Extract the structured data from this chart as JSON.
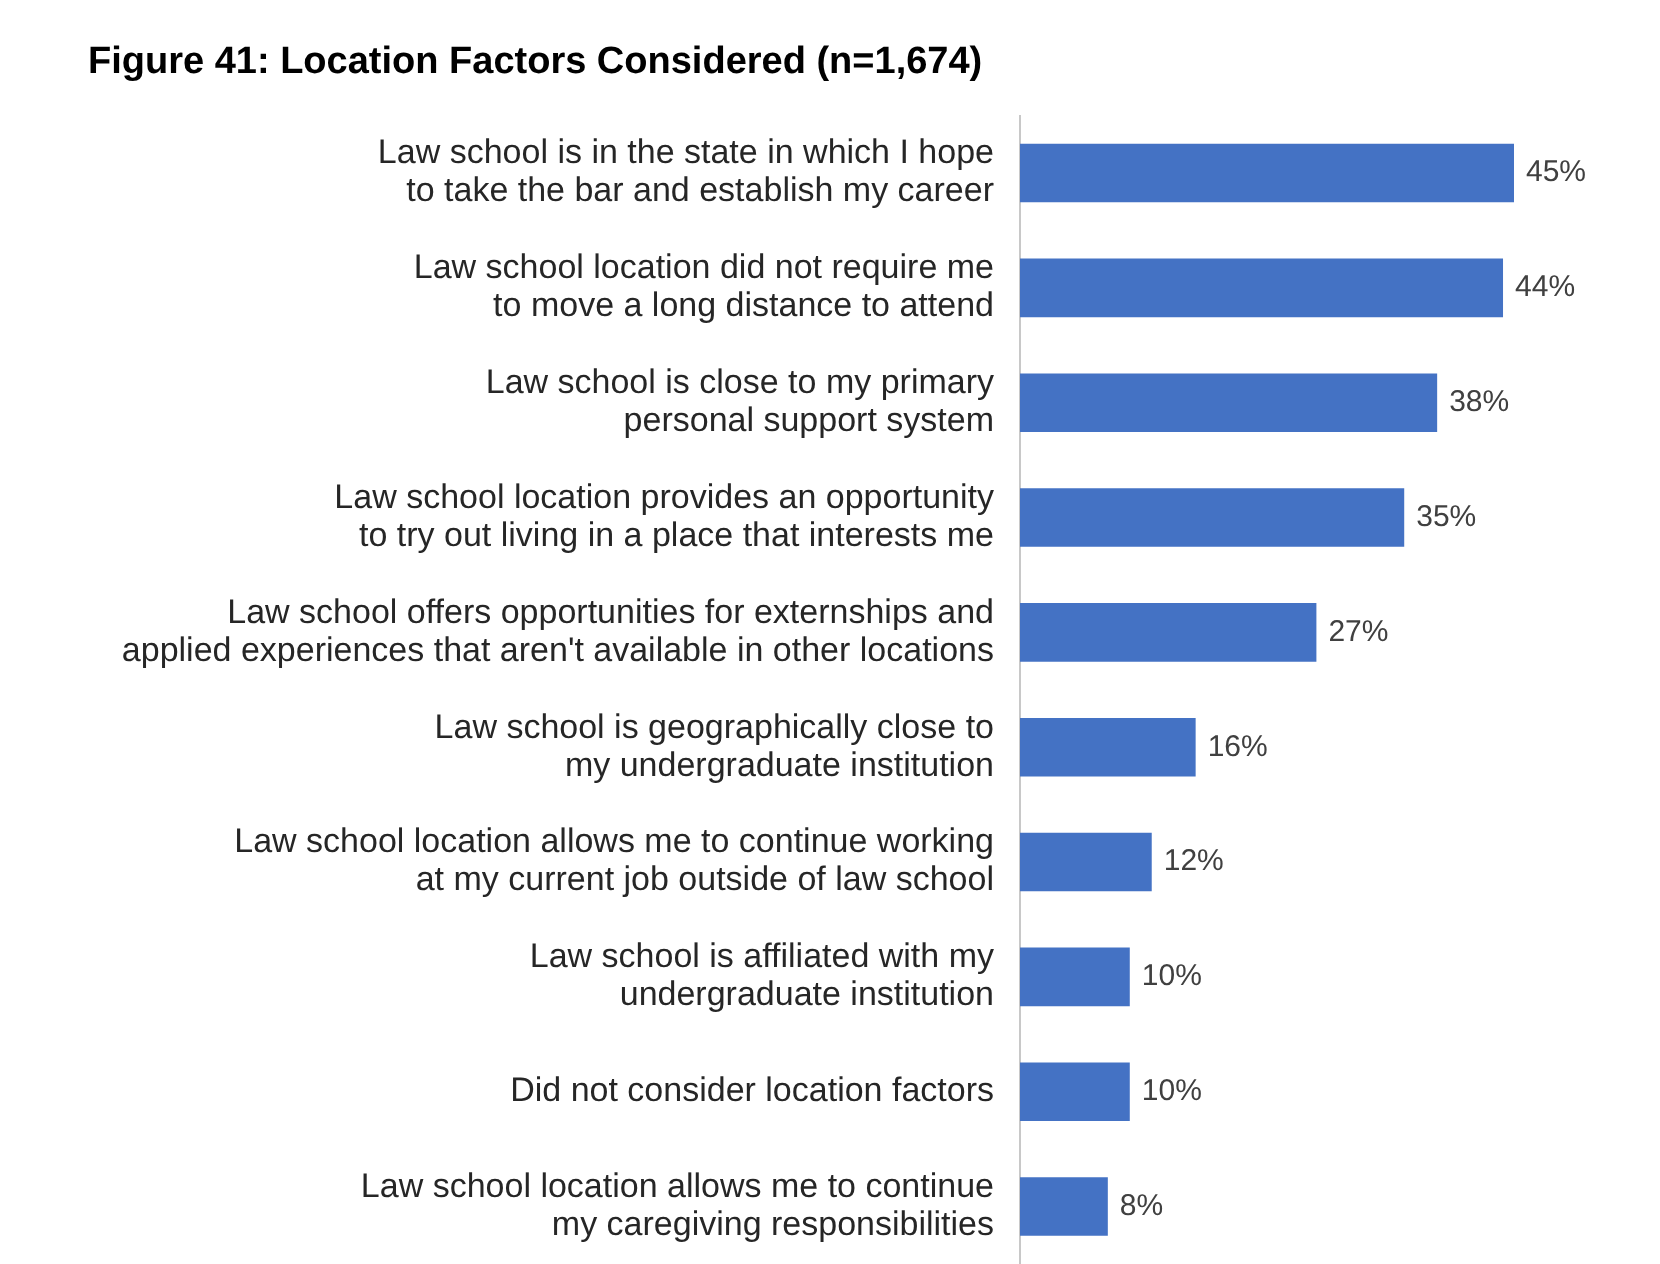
{
  "chart_data": {
    "type": "bar",
    "title": "Figure 41: Location Factors Considered (n=1,674)",
    "orientation": "horizontal",
    "categories": [
      "Law school is in the state in which I hope\nto take the bar and establish my career",
      "Law school location did not require me\nto move a long distance to attend",
      "Law school is close to my primary\npersonal support system",
      "Law school location provides an opportunity\nto try out living in a place that interests me",
      "Law school offers opportunities for externships and\napplied experiences that aren't available in other locations",
      "Law school is geographically close to\nmy undergraduate institution",
      "Law school location allows me to continue working\nat my current job outside of law school",
      "Law school is affiliated with my\nundergraduate institution",
      "Did not consider location factors",
      "Law school location allows me to continue\nmy caregiving responsibilities"
    ],
    "values": [
      45,
      44,
      38,
      35,
      27,
      16,
      12,
      10,
      10,
      8
    ],
    "value_labels": [
      "45%",
      "44%",
      "38%",
      "35%",
      "27%",
      "16%",
      "12%",
      "10%",
      "10%",
      "8%"
    ],
    "color": "#4472c4",
    "tick_labels": "y",
    "legend": false,
    "grid": false
  }
}
